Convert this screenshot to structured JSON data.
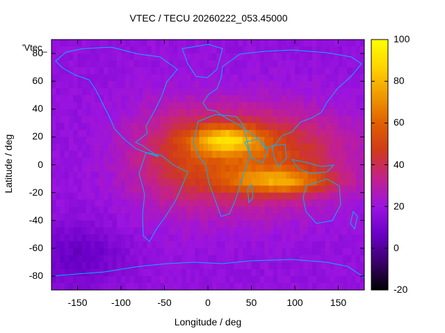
{
  "title": "VTEC / TECU 20260222_053.45000",
  "series_label": "'Vtec_",
  "xlabel": "Longitude / deg",
  "ylabel": "Latitude / deg",
  "x_ticks": [
    "-150",
    "-100",
    "-50",
    "0",
    "50",
    "100",
    "150"
  ],
  "y_ticks": [
    "80",
    "60",
    "40",
    "20",
    "0",
    "-20",
    "-40",
    "-60",
    "-80"
  ],
  "colorbar_ticks": [
    "100",
    "80",
    "60",
    "40",
    "20",
    "0",
    "-20"
  ],
  "colors": {
    "palette": [
      "#000000",
      "#3b006b",
      "#6a00c8",
      "#9b14e0",
      "#c3208e",
      "#d03a1a",
      "#e06000",
      "#f09a00",
      "#ffd400",
      "#ffff00"
    ],
    "coastline": "#00b4ff"
  },
  "chart_data": {
    "type": "heatmap",
    "title": "VTEC / TECU 20260222_053.45000",
    "xlabel": "Longitude / deg",
    "ylabel": "Latitude / deg",
    "xlim": [
      -180,
      180
    ],
    "ylim": [
      -90,
      90
    ],
    "colorbar_range": [
      -20,
      100
    ],
    "value_unit": "TECU",
    "background_level": 18,
    "features": [
      {
        "name": "crest-north",
        "lon": 20,
        "lat": 18,
        "peak": 95
      },
      {
        "name": "crest-south",
        "lon": 80,
        "lat": -12,
        "peak": 88
      },
      {
        "name": "equatorial-band",
        "lon": 60,
        "lat": 5,
        "peak": 55
      }
    ],
    "grid": false
  }
}
